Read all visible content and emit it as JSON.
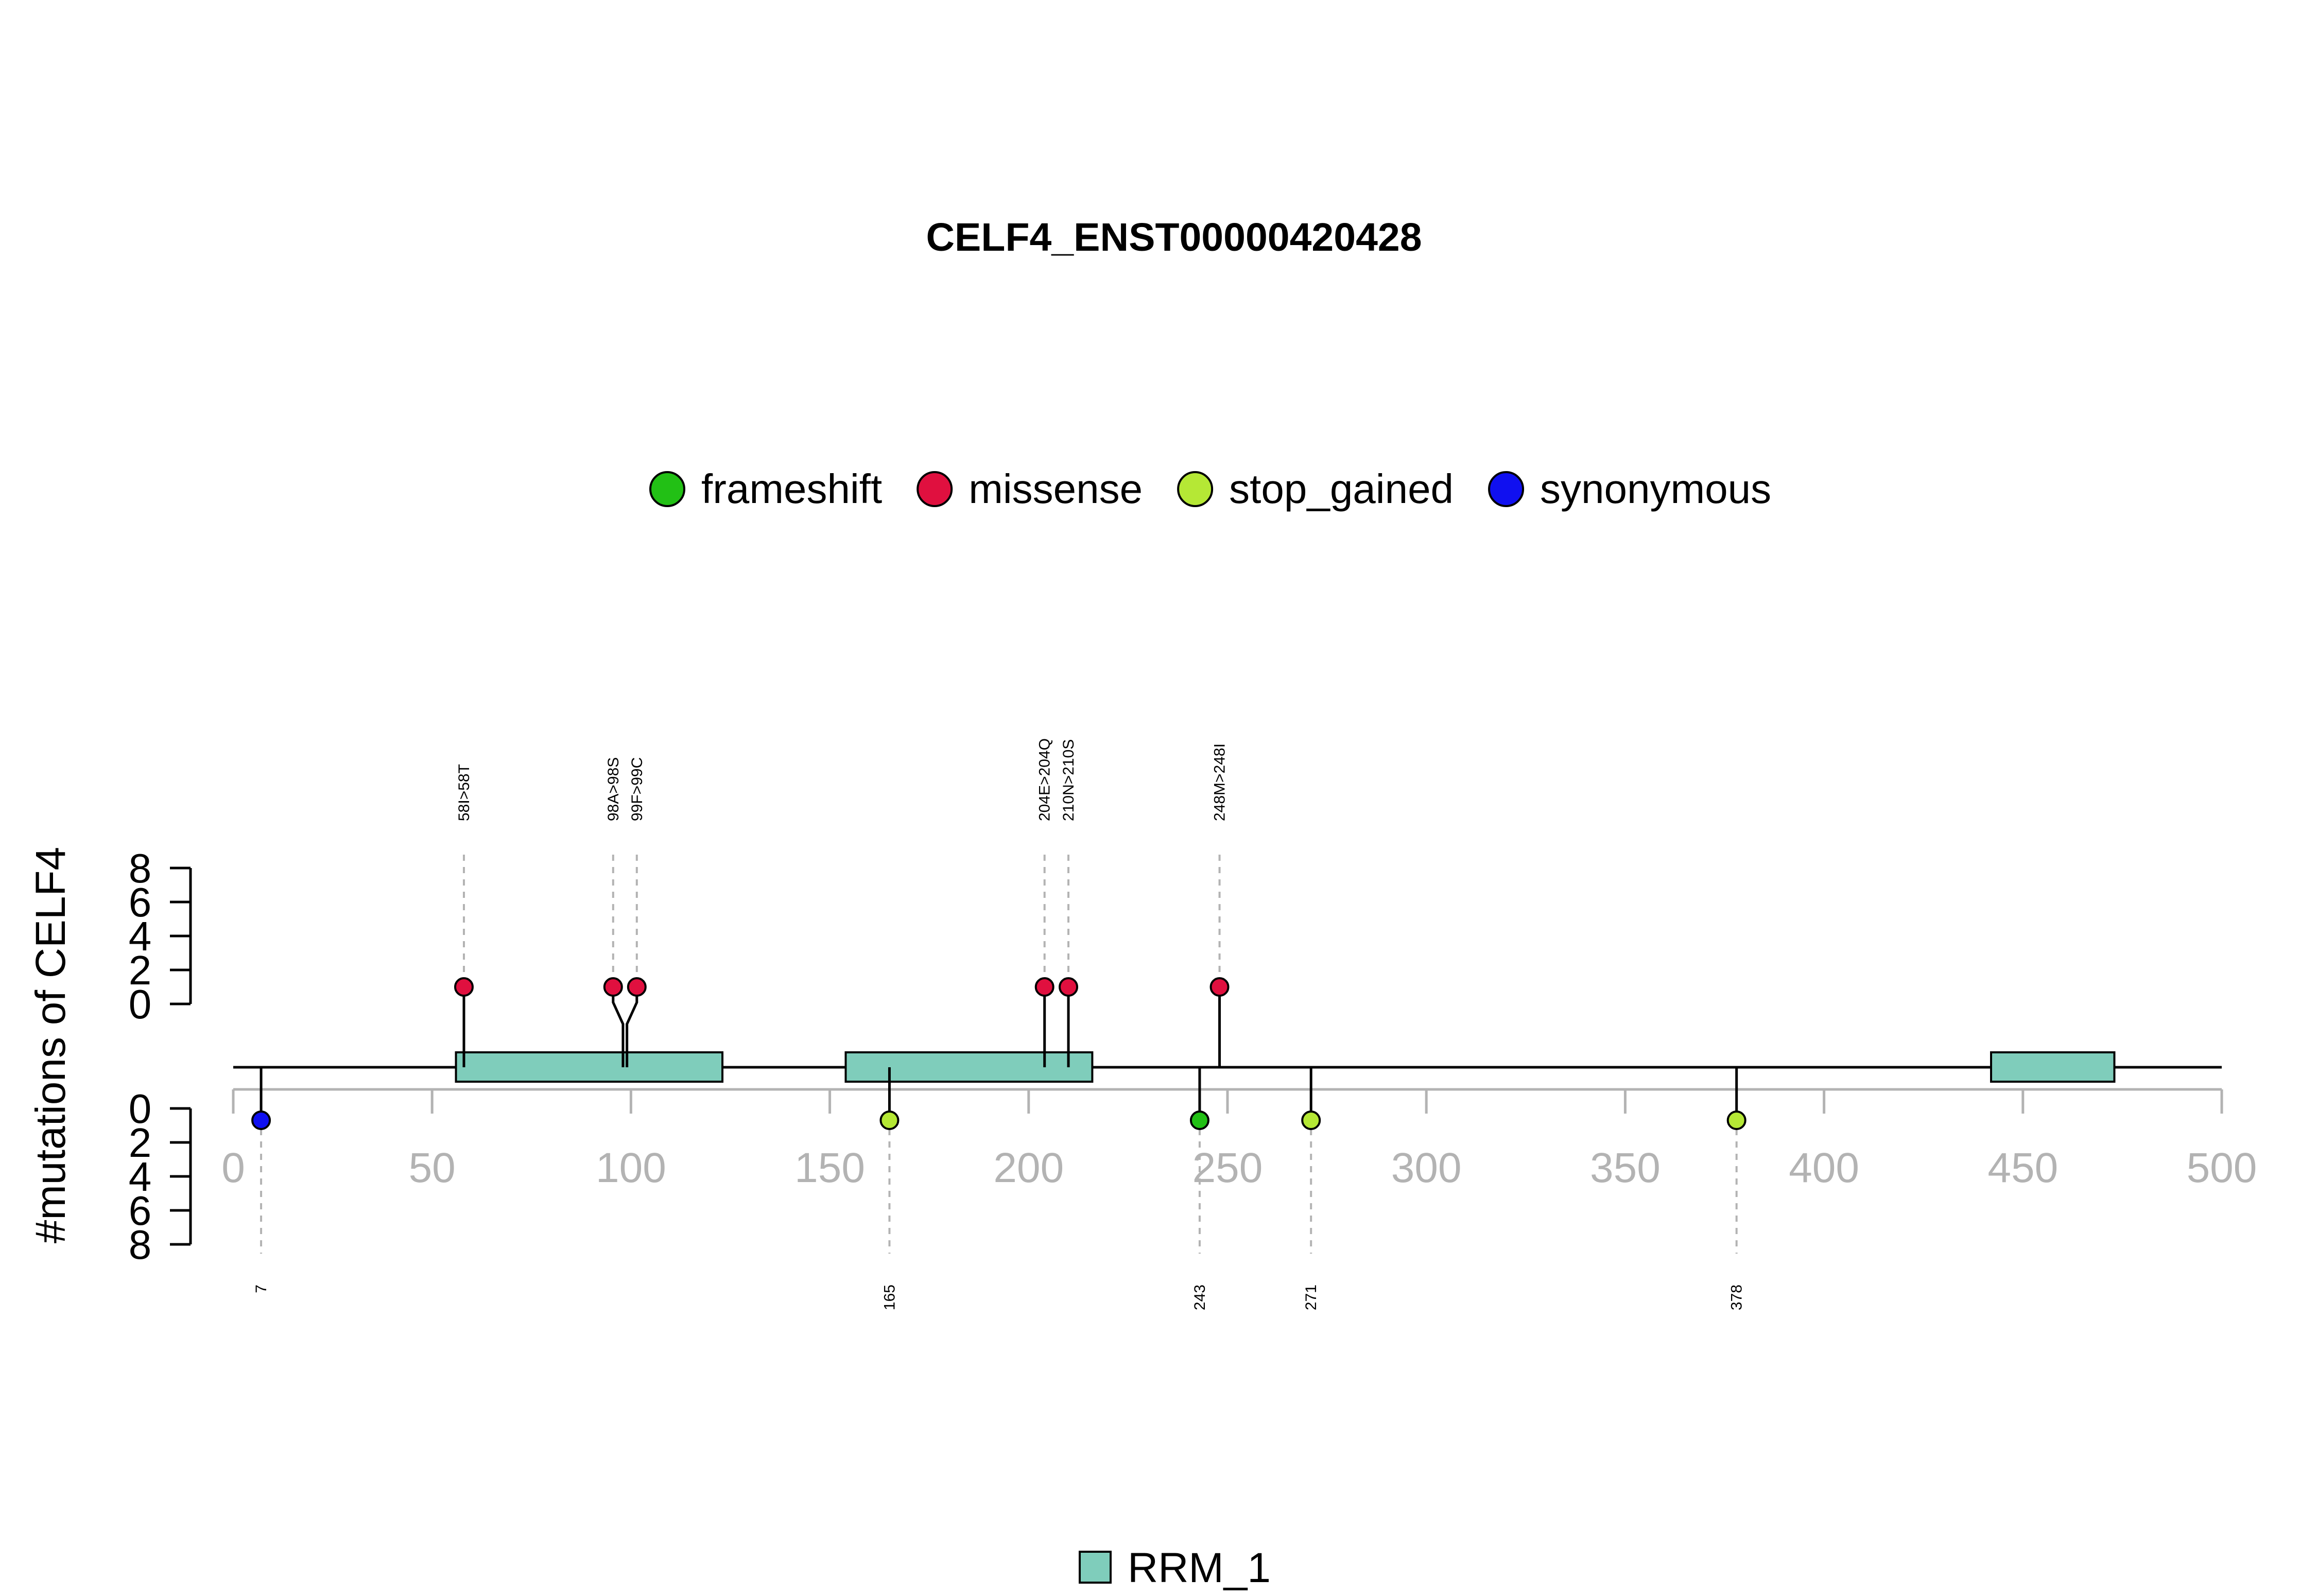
{
  "chart_data": {
    "type": "lollipop",
    "title": "CELF4_ENST00000420428",
    "ylabel": "#mutations of CELF4",
    "xlim": [
      0,
      500
    ],
    "x_ticks": [
      0,
      50,
      100,
      150,
      200,
      250,
      300,
      350,
      400,
      450,
      500
    ],
    "y_ticks": [
      0,
      2,
      4,
      6,
      8
    ],
    "legend_mutation_types": [
      {
        "name": "frameshift",
        "color": "#22c015"
      },
      {
        "name": "missense",
        "color": "#e0103f"
      },
      {
        "name": "stop_gained",
        "color": "#b5e835"
      },
      {
        "name": "synonymous",
        "color": "#1010f0"
      }
    ],
    "legend_domains": [
      {
        "name": "RRM_1",
        "color": "#7fcdbb"
      }
    ],
    "domains": [
      {
        "name": "RRM_1",
        "start": 56,
        "end": 123
      },
      {
        "name": "RRM_1",
        "start": 154,
        "end": 216
      },
      {
        "name": "RRM_1",
        "start": 442,
        "end": 473
      }
    ],
    "mutations_top": [
      {
        "pos": 58,
        "count": 1,
        "type": "missense",
        "label": "58I>58T"
      },
      {
        "pos": 98,
        "count": 1,
        "type": "missense",
        "label": "98A>98S"
      },
      {
        "pos": 99,
        "count": 1,
        "type": "missense",
        "label": "99F>99C"
      },
      {
        "pos": 204,
        "count": 1,
        "type": "missense",
        "label": "204E>204Q"
      },
      {
        "pos": 210,
        "count": 1,
        "type": "missense",
        "label": "210N>210S"
      },
      {
        "pos": 248,
        "count": 1,
        "type": "missense",
        "label": "248M>248I"
      }
    ],
    "mutations_bottom": [
      {
        "pos": 7,
        "count": 1,
        "type": "synonymous",
        "label": "7"
      },
      {
        "pos": 165,
        "count": 1,
        "type": "stop_gained",
        "label": "165"
      },
      {
        "pos": 243,
        "count": 1,
        "type": "frameshift",
        "label": "243"
      },
      {
        "pos": 271,
        "count": 1,
        "type": "stop_gained",
        "label": "271"
      },
      {
        "pos": 378,
        "count": 1,
        "type": "stop_gained",
        "label": "378"
      }
    ]
  }
}
